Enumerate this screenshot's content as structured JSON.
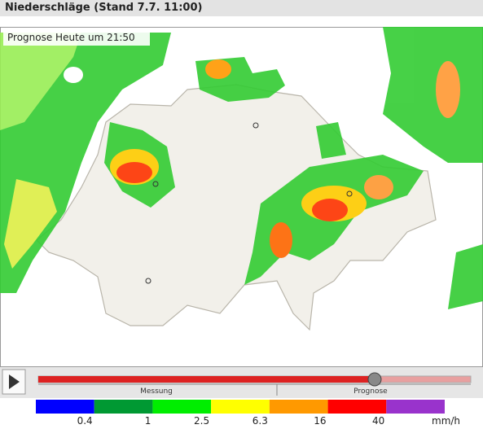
{
  "header": {
    "title": "Niederschläge (Stand 7.7. 11:00)"
  },
  "map": {
    "overlay_label": "Prognose Heute um 21:50"
  },
  "player": {
    "left_label": "Messung",
    "right_label": "Prognose"
  },
  "legend": {
    "unit": "mm/h",
    "colors": [
      "#0000ff",
      "#009933",
      "#00ee00",
      "#ffff00",
      "#ff9900",
      "#ff0000",
      "#9933cc"
    ],
    "labels": [
      "0.4",
      "1",
      "2.5",
      "6.3",
      "16",
      "40"
    ]
  }
}
